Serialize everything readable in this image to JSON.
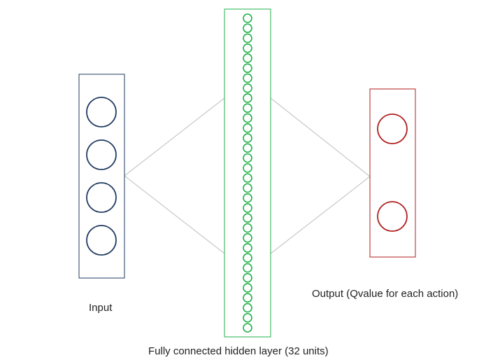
{
  "layers": {
    "input": {
      "label": "Input",
      "units": 4,
      "color": "#1f3a5f"
    },
    "hidden": {
      "label": "Fully connected hidden layer (32 units)",
      "units": 32,
      "color": "#22b04b"
    },
    "output": {
      "label": "Output (Qvalue for each action)",
      "units": 2,
      "color": "#b01e1e"
    }
  },
  "connector_color": "#c8c8c8"
}
